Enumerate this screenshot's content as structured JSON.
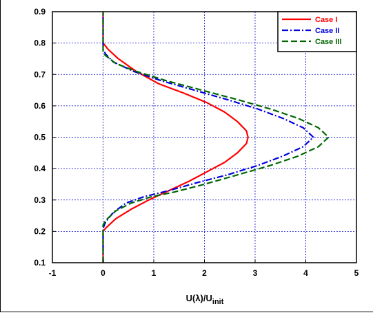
{
  "chart_data": {
    "type": "line",
    "title": "",
    "xlabel": "U(λ)/U",
    "xlabel_sub": "init",
    "ylabel": "",
    "xlim": [
      -1,
      5
    ],
    "ylim": [
      0.1,
      0.9
    ],
    "x_ticks": [
      "-1",
      "0",
      "1",
      "2",
      "3",
      "4",
      "5"
    ],
    "y_ticks": [
      "0.1",
      "0.2",
      "0.3",
      "0.4",
      "0.5",
      "0.6",
      "0.7",
      "0.8",
      "0.9"
    ],
    "grid": true,
    "legend_position": "top-right",
    "series": [
      {
        "name": "Case I",
        "color": "#ff0000",
        "dash": "solid",
        "points": [
          [
            0,
            0.1
          ],
          [
            0,
            0.2
          ],
          [
            0.05,
            0.21
          ],
          [
            0.25,
            0.24
          ],
          [
            0.55,
            0.27
          ],
          [
            0.9,
            0.3
          ],
          [
            1.3,
            0.33
          ],
          [
            1.7,
            0.36
          ],
          [
            2.05,
            0.39
          ],
          [
            2.4,
            0.42
          ],
          [
            2.65,
            0.45
          ],
          [
            2.83,
            0.48
          ],
          [
            2.86,
            0.5
          ],
          [
            2.83,
            0.52
          ],
          [
            2.65,
            0.55
          ],
          [
            2.4,
            0.58
          ],
          [
            2.05,
            0.61
          ],
          [
            1.6,
            0.64
          ],
          [
            1.1,
            0.67
          ],
          [
            0.65,
            0.71
          ],
          [
            0.3,
            0.75
          ],
          [
            0.1,
            0.78
          ],
          [
            0,
            0.8
          ],
          [
            0,
            0.9
          ]
        ]
      },
      {
        "name": "Case II",
        "color": "#0000dd",
        "dash": "dashdot",
        "points": [
          [
            0,
            0.1
          ],
          [
            0,
            0.21
          ],
          [
            0.05,
            0.23
          ],
          [
            0.2,
            0.26
          ],
          [
            0.45,
            0.29
          ],
          [
            0.8,
            0.31
          ],
          [
            1.3,
            0.33
          ],
          [
            1.85,
            0.355
          ],
          [
            2.45,
            0.38
          ],
          [
            3.05,
            0.41
          ],
          [
            3.55,
            0.44
          ],
          [
            3.95,
            0.47
          ],
          [
            4.15,
            0.5
          ],
          [
            3.95,
            0.53
          ],
          [
            3.55,
            0.56
          ],
          [
            3.05,
            0.59
          ],
          [
            2.45,
            0.62
          ],
          [
            1.8,
            0.65
          ],
          [
            1.15,
            0.68
          ],
          [
            0.6,
            0.71
          ],
          [
            0.2,
            0.74
          ],
          [
            0.05,
            0.765
          ],
          [
            0,
            0.78
          ],
          [
            0,
            0.9
          ]
        ]
      },
      {
        "name": "Case III",
        "color": "#006600",
        "dash": "dashed",
        "points": [
          [
            0,
            0.1
          ],
          [
            0,
            0.22
          ],
          [
            0.05,
            0.235
          ],
          [
            0.25,
            0.265
          ],
          [
            0.55,
            0.29
          ],
          [
            0.95,
            0.31
          ],
          [
            1.4,
            0.325
          ],
          [
            2.0,
            0.35
          ],
          [
            2.65,
            0.38
          ],
          [
            3.3,
            0.41
          ],
          [
            3.85,
            0.44
          ],
          [
            4.25,
            0.47
          ],
          [
            4.45,
            0.5
          ],
          [
            4.25,
            0.53
          ],
          [
            3.85,
            0.56
          ],
          [
            3.3,
            0.59
          ],
          [
            2.65,
            0.62
          ],
          [
            1.95,
            0.65
          ],
          [
            1.25,
            0.68
          ],
          [
            0.65,
            0.71
          ],
          [
            0.25,
            0.735
          ],
          [
            0.05,
            0.76
          ],
          [
            0,
            0.77
          ],
          [
            0,
            0.9
          ]
        ]
      }
    ]
  }
}
